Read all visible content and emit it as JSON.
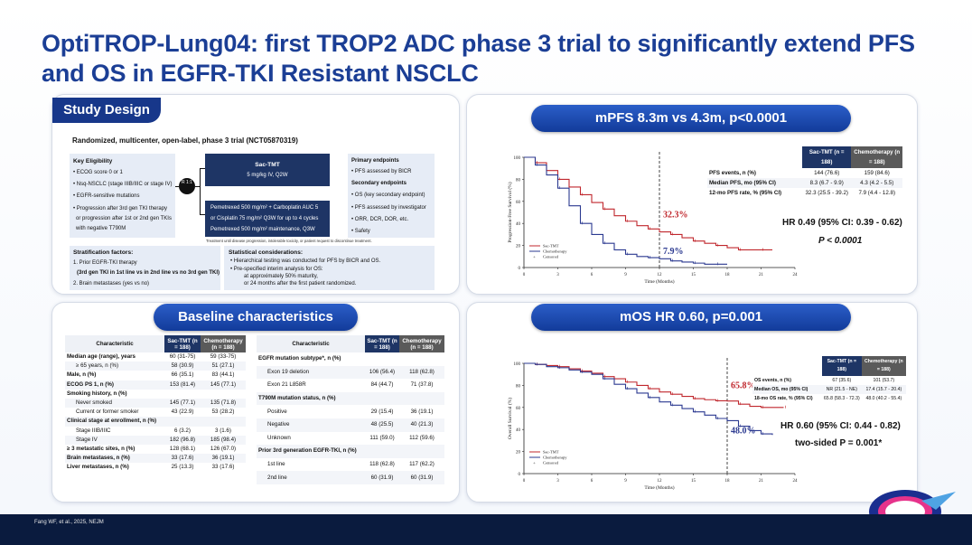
{
  "title": "OptiTROP-Lung04: first TROP2 ADC phase 3 trial to significantly extend PFS and OS in EGFR-TKI Resistant NSCLC",
  "footer": "Fang WF, et al., 2025, NEJM",
  "study": {
    "tag": "Study Design",
    "heading": "Randomized, multicenter, open-label, phase 3 trial (NCT05870319)",
    "eligibility_title": "Key Eligibility",
    "eligibility": [
      "ECOG score 0 or 1",
      "Nsq-NSCLC (stage IIIB/IIIC or stage IV)",
      "EGFR-sensitive mutations",
      "Progression after 3rd gen TKI therapy",
      "or progression after 1st or 2nd gen TKIs",
      "with negative T790M"
    ],
    "randomize": "R 1:1",
    "arm1_title": "Sac-TMT",
    "arm1_dose": "5 mg/kg IV, Q2W",
    "arm2": [
      "Pemetrexed 500 mg/m² + Carboplatin AUC 5",
      "or Cisplatin 75 mg/m² Q3W for up to 4 cycles",
      "Pemetrexed 500 mg/m² maintenance, Q3W"
    ],
    "treatment_note": "Treatment until disease progression, intolerable toxicity, or patient request to discontinue treatment.",
    "primary_title": "Primary endpoints",
    "primary": [
      "PFS assessed by BICR"
    ],
    "secondary_title": "Secondary endpoints",
    "secondary": [
      "OS (key secondary endpoint)",
      "PFS assessed by investigator",
      "ORR, DCR, DOR, etc.",
      "Safety"
    ],
    "strat_title": "Stratification factors:",
    "strat": [
      "1. Prior EGFR-TKI therapy",
      "(3rd gen TKI in 1st line vs in 2nd line vs no 3rd gen TKI)",
      "2. Brain metastases (yes vs no)"
    ],
    "stat_title": "Statistical considerations:",
    "stat": [
      "Hierarchical testing was conducted for PFS by BICR and OS.",
      "Pre-specified interim analysis for OS:",
      "at approximately 50% maturity,",
      "or 24 months after the first patient randomized."
    ]
  },
  "baseline": {
    "pill": "Baseline characteristics",
    "left_headers": [
      "Characteristic",
      "Sac-TMT (n = 188)",
      "Chemotherapy (n = 188)"
    ],
    "left_rows": [
      [
        "Median age (range), years",
        "60 (31-75)",
        "59 (33-75)"
      ],
      [
        "≥ 65 years, n (%)",
        "58 (30.9)",
        "51 (27.1)"
      ],
      [
        "Male, n (%)",
        "66 (35.1)",
        "83 (44.1)"
      ],
      [
        "ECOG PS 1, n (%)",
        "153 (81.4)",
        "145 (77.1)"
      ],
      [
        "Smoking history, n (%)",
        "",
        ""
      ],
      [
        "Never smoked",
        "145 (77.1)",
        "135 (71.8)"
      ],
      [
        "Current or former smoker",
        "43 (22.9)",
        "53 (28.2)"
      ],
      [
        "Clinical stage at enrollment, n (%)",
        "",
        ""
      ],
      [
        "Stage IIIB/IIIC",
        "6 (3.2)",
        "3 (1.6)"
      ],
      [
        "Stage IV",
        "182 (96.8)",
        "185 (98.4)"
      ],
      [
        "≥ 3 metastatic sites, n (%)",
        "128 (68.1)",
        "126 (67.0)"
      ],
      [
        "Brain metastases, n (%)",
        "33 (17.6)",
        "36 (19.1)"
      ],
      [
        "Liver metastases, n (%)",
        "25 (13.3)",
        "33 (17.6)"
      ]
    ],
    "right_headers": [
      "Characteristic",
      "Sac-TMT (n = 188)",
      "Chemotherapy (n = 188)"
    ],
    "right_rows": [
      [
        "EGFR mutation subtype*, n (%)",
        "",
        ""
      ],
      [
        "Exon 19 deletion",
        "106 (56.4)",
        "118 (62.8)"
      ],
      [
        "Exon 21 L858R",
        "84 (44.7)",
        "71 (37.8)"
      ],
      [
        "T790M mutation status, n (%)",
        "",
        ""
      ],
      [
        "Positive",
        "29 (15.4)",
        "36 (19.1)"
      ],
      [
        "Negative",
        "48 (25.5)",
        "40 (21.3)"
      ],
      [
        "Unknown",
        "111 (59.0)",
        "112 (59.6)"
      ],
      [
        "Prior 3rd generation EGFR-TKI, n (%)",
        "",
        ""
      ],
      [
        "1st line",
        "118 (62.8)",
        "117 (62.2)"
      ],
      [
        "2nd line",
        "60 (31.9)",
        "60 (31.9)"
      ]
    ]
  },
  "pfs": {
    "pill": "mPFS 8.3m vs 4.3m, p<0.0001",
    "table_headers": [
      "",
      "Sac-TMT (n = 188)",
      "Chemotherapy (n = 188)"
    ],
    "table_rows": [
      [
        "PFS events, n (%)",
        "144 (76.6)",
        "159 (84.6)"
      ],
      [
        "Median PFS, mo (95% CI)",
        "8.3 (6.7 - 9.9)",
        "4.3 (4.2 - 5.5)"
      ],
      [
        "12-mo PFS rate, % (95% CI)",
        "32.3 (25.5 - 39.2)",
        "7.9 (4.4 - 12.8)"
      ]
    ],
    "hr": "HR 0.49 (95% CI: 0.39 - 0.62)",
    "p": "P < 0.0001",
    "label_red": "32.3%",
    "label_blue": "7.9%"
  },
  "os": {
    "pill": "mOS HR 0.60, p=0.001",
    "table_headers": [
      "",
      "Sac-TMT (n = 188)",
      "Chemotherapy (n = 188)"
    ],
    "table_rows": [
      [
        "OS events, n (%)",
        "67 (35.6)",
        "101 (53.7)"
      ],
      [
        "Median OS, mo (95% CI)",
        "NR (21.5 - NE)",
        "17.4 (15.7 - 20.4)"
      ],
      [
        "18-mo OS rate, % (95% CI)",
        "65.8 (58.3 - 72.3)",
        "48.0 (40.2 - 55.4)"
      ]
    ],
    "hr": "HR 0.60 (95% CI: 0.44 - 0.82)",
    "p": "two-sided P = 0.001*",
    "label_red": "65.8%",
    "label_blue": "48.0%"
  },
  "colors": {
    "navy": "#1b3e95",
    "red": "#c0272d",
    "blue": "#2b3990"
  },
  "chart_data": [
    {
      "type": "line",
      "ylabel": "Progression-Free Survival (%)",
      "xlabel": "Time (Months)",
      "x_ticks": [
        0,
        3,
        6,
        9,
        12,
        15,
        18,
        21,
        24
      ],
      "y_ticks": [
        0,
        20,
        40,
        60,
        80,
        100
      ],
      "xlim": [
        0,
        24
      ],
      "ylim": [
        0,
        100
      ],
      "legend": [
        "Sac-TMT",
        "Chemotherapy",
        "Censored"
      ],
      "series": [
        {
          "name": "Sac-TMT",
          "x": [
            0,
            1,
            2,
            3,
            4,
            5,
            6,
            7,
            8,
            9,
            10,
            11,
            12,
            13,
            14,
            15,
            16,
            17,
            18,
            19,
            20,
            21,
            22
          ],
          "y": [
            100,
            95,
            88,
            80,
            73,
            66,
            59,
            53,
            47,
            42,
            38,
            35,
            32.3,
            30,
            27,
            24,
            22,
            20,
            18,
            16,
            16,
            16,
            16
          ]
        },
        {
          "name": "Chemotherapy",
          "x": [
            0,
            1,
            2,
            3,
            4,
            5,
            6,
            7,
            8,
            9,
            10,
            11,
            12,
            13,
            14,
            15,
            16,
            17,
            18
          ],
          "y": [
            100,
            93,
            84,
            72,
            56,
            40,
            30,
            22,
            16,
            12,
            10,
            9,
            7.9,
            6,
            5,
            4,
            3,
            3,
            3
          ]
        }
      ]
    },
    {
      "type": "line",
      "ylabel": "Overall Survival (%)",
      "xlabel": "Time (Months)",
      "x_ticks": [
        0,
        3,
        6,
        9,
        12,
        15,
        18,
        21,
        24
      ],
      "y_ticks": [
        0,
        20,
        40,
        60,
        80,
        100
      ],
      "xlim": [
        0,
        24
      ],
      "ylim": [
        0,
        100
      ],
      "legend": [
        "Sac-TMT",
        "Chemotherapy",
        "Censored"
      ],
      "series": [
        {
          "name": "Sac-TMT",
          "x": [
            0,
            1,
            2,
            3,
            4,
            5,
            6,
            7,
            8,
            9,
            10,
            11,
            12,
            13,
            14,
            15,
            16,
            17,
            18,
            19,
            20,
            21,
            22,
            23
          ],
          "y": [
            100,
            99,
            98,
            97,
            95,
            93,
            91,
            88,
            86,
            83,
            80,
            77,
            74,
            72,
            70,
            68,
            67,
            66,
            65.8,
            63,
            61,
            60,
            60,
            60
          ]
        },
        {
          "name": "Chemotherapy",
          "x": [
            0,
            1,
            2,
            3,
            4,
            5,
            6,
            7,
            8,
            9,
            10,
            11,
            12,
            13,
            14,
            15,
            16,
            17,
            18,
            19,
            20,
            21,
            22
          ],
          "y": [
            100,
            99,
            97,
            96,
            94,
            92,
            90,
            86,
            81,
            77,
            73,
            69,
            65,
            62,
            59,
            56,
            53,
            50,
            48,
            43,
            39,
            36,
            35
          ]
        }
      ]
    }
  ]
}
